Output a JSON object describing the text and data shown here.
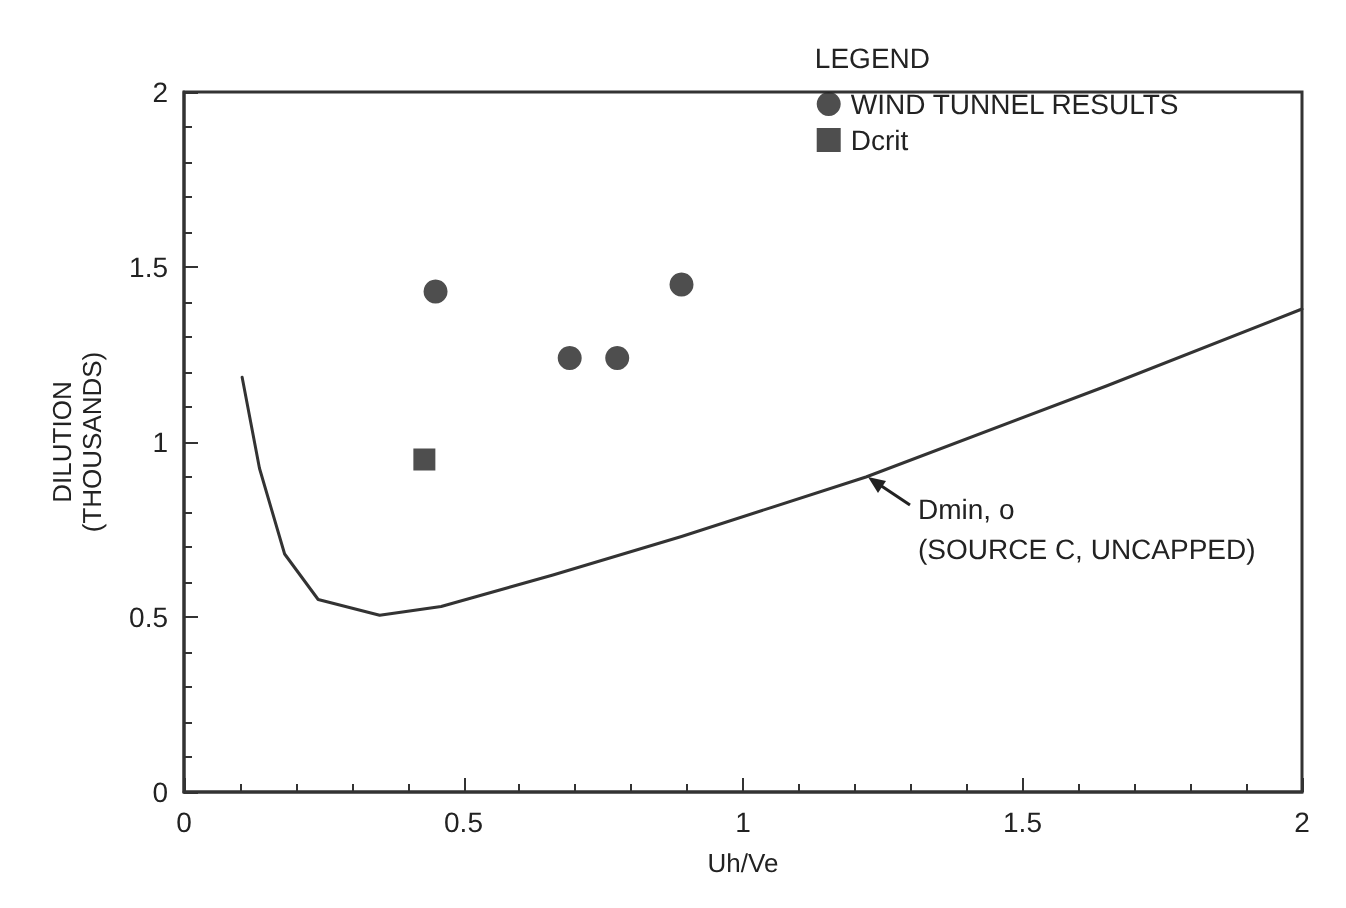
{
  "chart_data": {
    "type": "scatter",
    "xlabel": "Uh/Ve",
    "ylabel": "DILUTION (THOUSANDS)",
    "legend_title": "LEGEND",
    "legend": "top right",
    "grid": false,
    "xlim": [
      0,
      2
    ],
    "xticks": [
      0,
      0.5,
      1,
      1.5,
      2
    ],
    "ylim": [
      0,
      2
    ],
    "yticks": [
      0,
      0.5,
      1,
      1.5,
      2
    ],
    "series": [
      {
        "type": "line",
        "color": "#333333",
        "marker": "none",
        "line_style": "solid",
        "x": [
          0.104,
          0.135,
          0.18,
          0.24,
          0.35,
          0.46,
          0.66,
          0.89,
          1.22,
          1.65,
          2.0
        ],
        "values": [
          1.185,
          0.925,
          0.68,
          0.55,
          0.505,
          0.53,
          0.62,
          0.73,
          0.9,
          1.16,
          1.38
        ]
      },
      {
        "name": "WIND TUNNEL RESULTS",
        "color": "#222222",
        "marker": "circle",
        "x": [
          0.45,
          0.69,
          0.775,
          0.89
        ],
        "values": [
          1.43,
          1.24,
          1.24,
          1.45
        ]
      },
      {
        "name": "Dcrit",
        "color": "#222222",
        "marker": "square",
        "x": [
          0.43
        ],
        "values": [
          0.95
        ]
      }
    ],
    "annotations": [
      {
        "text": "Dmin, o\n(SOURCE C, UNCAPPED)",
        "x": 1.22,
        "y": 0.9
      }
    ]
  }
}
